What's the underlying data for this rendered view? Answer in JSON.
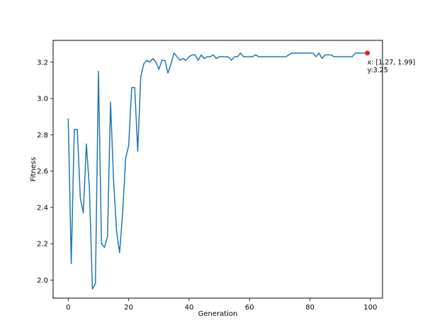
{
  "chart_data": {
    "type": "line",
    "title": "",
    "xlabel": "Generation",
    "ylabel": "Fitness",
    "xlim": [
      -5,
      104
    ],
    "ylim": [
      1.9,
      3.32
    ],
    "grid": false,
    "legend": "none",
    "xticks": [
      0,
      20,
      40,
      60,
      80,
      100
    ],
    "yticks": [
      2.0,
      2.2,
      2.4,
      2.6,
      2.8,
      3.0,
      3.2
    ],
    "xtick_labels": [
      "0",
      "20",
      "40",
      "60",
      "80",
      "100"
    ],
    "ytick_labels": [
      "2.0",
      "2.2",
      "2.4",
      "2.6",
      "2.8",
      "3.0",
      "3.2"
    ],
    "line_color": "#1f77b4",
    "marker_color": "#d62728",
    "series": [
      {
        "values": [
          2.89,
          2.09,
          2.83,
          2.83,
          2.45,
          2.37,
          2.75,
          2.51,
          1.95,
          1.98,
          3.15,
          2.2,
          2.18,
          2.24,
          2.98,
          2.55,
          2.27,
          2.15,
          2.37,
          2.67,
          2.74,
          3.06,
          3.06,
          2.71,
          3.12,
          3.19,
          3.21,
          3.2,
          3.22,
          3.2,
          3.16,
          3.21,
          3.21,
          3.14,
          3.19,
          3.25,
          3.23,
          3.21,
          3.22,
          3.21,
          3.23,
          3.24,
          3.24,
          3.21,
          3.24,
          3.22,
          3.23,
          3.23,
          3.24,
          3.22,
          3.23,
          3.23,
          3.23,
          3.23,
          3.21,
          3.23,
          3.23,
          3.25,
          3.23,
          3.23,
          3.23,
          3.23,
          3.24,
          3.23,
          3.23,
          3.23,
          3.23,
          3.23,
          3.23,
          3.23,
          3.23,
          3.23,
          3.23,
          3.24,
          3.25,
          3.25,
          3.25,
          3.25,
          3.25,
          3.25,
          3.25,
          3.25,
          3.23,
          3.25,
          3.22,
          3.24,
          3.24,
          3.24,
          3.23,
          3.23,
          3.23,
          3.23,
          3.23,
          3.23,
          3.23,
          3.25,
          3.25,
          3.25,
          3.25,
          3.25
        ]
      }
    ],
    "highlight_point": {
      "x": 99,
      "y": 3.25
    },
    "annotation": {
      "line1": "x: [1.27, 1.99]",
      "line2": "y:3.25"
    }
  }
}
